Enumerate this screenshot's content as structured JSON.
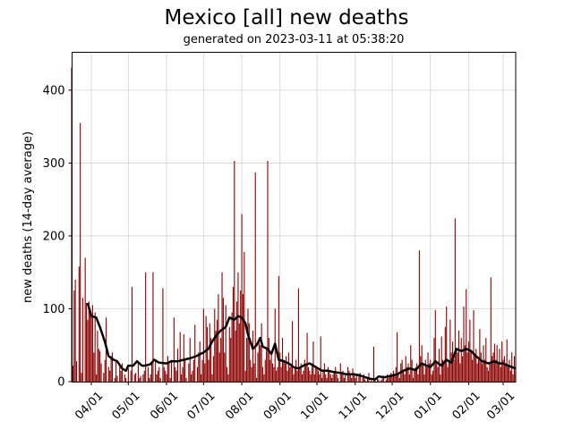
{
  "chart_data": {
    "type": "bar",
    "title": "Mexico [all] new deaths",
    "subtitle": "generated on 2023-03-11 at 05:38:20",
    "xlabel": "",
    "ylabel": "new deaths (14-day average)",
    "ylim": [
      0,
      452
    ],
    "yticks": [
      0,
      100,
      200,
      300,
      400
    ],
    "xticks": [
      {
        "date": "2022-04-01",
        "label": "04/01"
      },
      {
        "date": "2022-05-01",
        "label": "05/01"
      },
      {
        "date": "2022-06-01",
        "label": "06/01"
      },
      {
        "date": "2022-07-01",
        "label": "07/01"
      },
      {
        "date": "2022-08-01",
        "label": "08/01"
      },
      {
        "date": "2022-09-01",
        "label": "09/01"
      },
      {
        "date": "2022-10-01",
        "label": "10/01"
      },
      {
        "date": "2022-11-01",
        "label": "11/01"
      },
      {
        "date": "2022-12-01",
        "label": "12/01"
      },
      {
        "date": "2023-01-01",
        "label": "01/01"
      },
      {
        "date": "2023-02-01",
        "label": "02/01"
      },
      {
        "date": "2023-03-01",
        "label": "03/01"
      }
    ],
    "grid": true,
    "colors": {
      "bars": "#8b0000",
      "average": "#000000",
      "grid": "#d3d3d3"
    },
    "daily": {
      "start_date": "2022-03-16",
      "values": [
        431,
        22,
        125,
        140,
        28,
        0,
        158,
        355,
        12,
        115,
        0,
        170,
        108,
        85,
        110,
        95,
        90,
        105,
        40,
        95,
        10,
        70,
        45,
        42,
        25,
        0,
        12,
        30,
        88,
        0,
        20,
        15,
        35,
        40,
        0,
        5,
        30,
        8,
        0,
        20,
        15,
        25,
        0,
        10,
        5,
        0,
        18,
        0,
        15,
        130,
        0,
        10,
        12,
        0,
        25,
        5,
        8,
        0,
        10,
        15,
        150,
        0,
        20,
        5,
        10,
        25,
        150,
        0,
        30,
        10,
        15,
        20,
        5,
        0,
        128,
        20,
        15,
        10,
        35,
        25,
        5,
        30,
        0,
        88,
        20,
        15,
        45,
        0,
        68,
        10,
        20,
        65,
        30,
        5,
        0,
        25,
        60,
        10,
        15,
        30,
        78,
        0,
        20,
        40,
        55,
        10,
        30,
        100,
        25,
        90,
        75,
        30,
        80,
        60,
        10,
        35,
        100,
        70,
        85,
        120,
        40,
        60,
        150,
        115,
        40,
        105,
        20,
        10,
        75,
        60,
        95,
        130,
        303,
        70,
        110,
        150,
        80,
        125,
        230,
        120,
        178,
        15,
        60,
        100,
        80,
        30,
        20,
        70,
        25,
        287,
        5,
        40,
        60,
        50,
        80,
        20,
        10,
        30,
        45,
        303,
        60,
        30,
        40,
        25,
        20,
        100,
        15,
        20,
        145,
        40,
        20,
        60,
        30,
        25,
        35,
        15,
        40,
        20,
        25,
        83,
        10,
        20,
        30,
        15,
        128,
        20,
        25,
        10,
        15,
        30,
        25,
        67,
        20,
        15,
        10,
        25,
        55,
        10,
        20,
        20,
        15,
        10,
        62,
        5,
        15,
        25,
        10,
        5,
        20,
        15,
        10,
        5,
        10,
        15,
        20,
        10,
        5,
        0,
        25,
        10,
        15,
        5,
        10,
        0,
        20,
        15,
        10,
        5,
        18,
        12,
        5,
        10,
        0,
        8,
        12,
        0,
        5,
        10,
        3,
        0,
        5,
        12,
        0,
        3,
        0,
        48,
        2,
        0,
        5,
        3,
        0,
        2,
        5,
        8,
        0,
        3,
        10,
        5,
        8,
        12,
        10,
        15,
        8,
        20,
        68,
        12,
        5,
        25,
        30,
        15,
        10,
        35,
        20,
        25,
        10,
        50,
        30,
        5,
        15,
        20,
        25,
        10,
        180,
        35,
        50,
        25,
        10,
        30,
        20,
        40,
        25,
        30,
        10,
        15,
        60,
        98,
        25,
        20,
        45,
        10,
        62,
        30,
        25,
        75,
        103,
        20,
        30,
        85,
        40,
        55,
        30,
        224,
        45,
        40,
        70,
        25,
        60,
        35,
        103,
        50,
        127,
        40,
        55,
        85,
        40,
        30,
        98,
        35,
        45,
        25,
        30,
        72,
        40,
        25,
        50,
        30,
        60,
        20,
        15,
        25,
        143,
        35,
        40,
        52,
        30,
        50,
        25,
        45,
        20,
        55,
        30,
        35,
        25,
        58,
        20,
        30,
        15,
        40,
        10,
        35,
        15
      ]
    },
    "average_14day": [
      [
        "2022-03-29",
        108
      ],
      [
        "2022-04-01",
        90
      ],
      [
        "2022-04-05",
        88
      ],
      [
        "2022-04-08",
        75
      ],
      [
        "2022-04-12",
        55
      ],
      [
        "2022-04-15",
        35
      ],
      [
        "2022-04-19",
        30
      ],
      [
        "2022-04-22",
        28
      ],
      [
        "2022-04-26",
        18
      ],
      [
        "2022-04-29",
        15
      ],
      [
        "2022-05-01",
        22
      ],
      [
        "2022-05-05",
        22
      ],
      [
        "2022-05-08",
        28
      ],
      [
        "2022-05-12",
        22
      ],
      [
        "2022-05-15",
        22
      ],
      [
        "2022-05-19",
        24
      ],
      [
        "2022-05-22",
        30
      ],
      [
        "2022-05-26",
        26
      ],
      [
        "2022-06-01",
        25
      ],
      [
        "2022-06-05",
        28
      ],
      [
        "2022-06-10",
        28
      ],
      [
        "2022-06-15",
        30
      ],
      [
        "2022-06-20",
        32
      ],
      [
        "2022-06-25",
        35
      ],
      [
        "2022-07-01",
        40
      ],
      [
        "2022-07-05",
        45
      ],
      [
        "2022-07-08",
        55
      ],
      [
        "2022-07-12",
        65
      ],
      [
        "2022-07-15",
        70
      ],
      [
        "2022-07-19",
        75
      ],
      [
        "2022-07-22",
        88
      ],
      [
        "2022-07-26",
        85
      ],
      [
        "2022-07-29",
        90
      ],
      [
        "2022-08-01",
        88
      ],
      [
        "2022-08-04",
        80
      ],
      [
        "2022-08-06",
        65
      ],
      [
        "2022-08-08",
        55
      ],
      [
        "2022-08-10",
        45
      ],
      [
        "2022-08-13",
        50
      ],
      [
        "2022-08-16",
        60
      ],
      [
        "2022-08-18",
        48
      ],
      [
        "2022-08-22",
        45
      ],
      [
        "2022-08-25",
        38
      ],
      [
        "2022-08-28",
        52
      ],
      [
        "2022-08-31",
        30
      ],
      [
        "2022-09-04",
        28
      ],
      [
        "2022-09-08",
        25
      ],
      [
        "2022-09-12",
        20
      ],
      [
        "2022-09-16",
        18
      ],
      [
        "2022-09-20",
        22
      ],
      [
        "2022-09-25",
        25
      ],
      [
        "2022-09-30",
        20
      ],
      [
        "2022-10-05",
        15
      ],
      [
        "2022-10-10",
        15
      ],
      [
        "2022-10-15",
        13
      ],
      [
        "2022-10-20",
        12
      ],
      [
        "2022-10-25",
        10
      ],
      [
        "2022-10-30",
        10
      ],
      [
        "2022-11-04",
        9
      ],
      [
        "2022-11-09",
        6
      ],
      [
        "2022-11-13",
        4
      ],
      [
        "2022-11-17",
        3
      ],
      [
        "2022-11-20",
        7
      ],
      [
        "2022-11-25",
        6
      ],
      [
        "2022-11-30",
        8
      ],
      [
        "2022-12-05",
        10
      ],
      [
        "2022-12-10",
        15
      ],
      [
        "2022-12-15",
        18
      ],
      [
        "2022-12-20",
        16
      ],
      [
        "2022-12-25",
        25
      ],
      [
        "2022-12-29",
        22
      ],
      [
        "2023-01-01",
        20
      ],
      [
        "2023-01-05",
        28
      ],
      [
        "2023-01-10",
        22
      ],
      [
        "2023-01-14",
        30
      ],
      [
        "2023-01-18",
        26
      ],
      [
        "2023-01-22",
        45
      ],
      [
        "2023-01-26",
        42
      ],
      [
        "2023-01-30",
        45
      ],
      [
        "2023-02-03",
        42
      ],
      [
        "2023-02-07",
        35
      ],
      [
        "2023-02-12",
        28
      ],
      [
        "2023-02-17",
        25
      ],
      [
        "2023-02-22",
        28
      ],
      [
        "2023-02-26",
        25
      ],
      [
        "2023-03-01",
        25
      ],
      [
        "2023-03-05",
        22
      ],
      [
        "2023-03-08",
        20
      ],
      [
        "2023-03-11",
        18
      ]
    ]
  }
}
